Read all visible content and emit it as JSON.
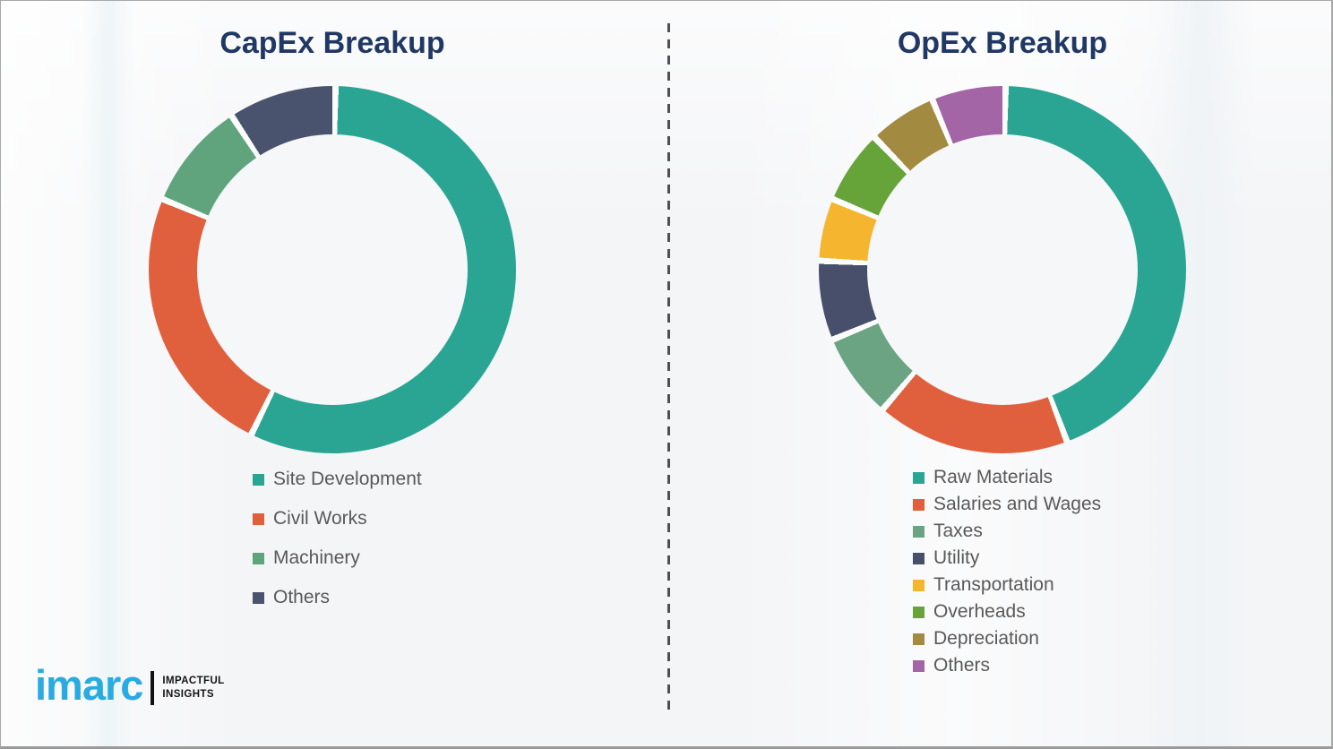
{
  "page": {
    "background_color": "#f4f5f7",
    "divider_color": "#4f4f4f",
    "title_color": "#1F3864",
    "legend_text_color": "#595959"
  },
  "chart_data": [
    {
      "type": "pie",
      "subtype": "donut",
      "title": "CapEx Breakup",
      "categories": [
        "Site Development",
        "Civil Works",
        "Machinery",
        "Others"
      ],
      "values": [
        57,
        24,
        9.5,
        9.5
      ],
      "values_note": "estimated percent of ring, no numeric labels shown in image",
      "colors": [
        "#2AA593",
        "#E0603E",
        "#5FA47D",
        "#4A536E"
      ],
      "start_angle_deg": 0,
      "direction": "clockwise",
      "legend_position": "below-left",
      "grid": false
    },
    {
      "type": "pie",
      "subtype": "donut",
      "title": "OpEx Breakup",
      "categories": [
        "Raw Materials",
        "Salaries and Wages",
        "Taxes",
        "Utility",
        "Transportation",
        "Overheads",
        "Depreciation",
        "Others"
      ],
      "values": [
        44,
        17,
        7.5,
        7,
        5.5,
        6.5,
        6,
        6.5
      ],
      "values_note": "estimated percent of ring, no numeric labels shown in image",
      "colors": [
        "#2AA593",
        "#E0603E",
        "#6BA483",
        "#484F6A",
        "#F5B52E",
        "#66A43A",
        "#A38A41",
        "#A465A7"
      ],
      "start_angle_deg": 0,
      "direction": "clockwise",
      "legend_position": "below-left",
      "grid": false
    }
  ],
  "logo": {
    "brand": "imarc",
    "brand_color": "#29ABE2",
    "tagline_line1": "IMPACTFUL",
    "tagline_line2": "INSIGHTS"
  }
}
